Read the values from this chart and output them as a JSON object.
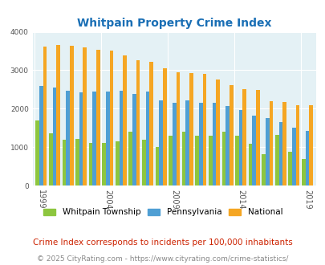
{
  "title": "Whitpain Property Crime Index",
  "title_color": "#1a6fb5",
  "years": [
    1999,
    2000,
    2001,
    2002,
    2003,
    2004,
    2005,
    2006,
    2007,
    2008,
    2009,
    2010,
    2011,
    2012,
    2013,
    2014,
    2015,
    2016,
    2017,
    2018,
    2019
  ],
  "whitpain": [
    1700,
    1360,
    1190,
    1220,
    1110,
    1110,
    1150,
    1400,
    1190,
    1000,
    1290,
    1400,
    1290,
    1290,
    1400,
    1300,
    1090,
    820,
    1310,
    870,
    690
  ],
  "pennsylvania": [
    2600,
    2560,
    2460,
    2430,
    2440,
    2440,
    2460,
    2390,
    2450,
    2210,
    2160,
    2220,
    2160,
    2160,
    2070,
    1960,
    1820,
    1760,
    1650,
    1510,
    1420
  ],
  "national": [
    3620,
    3660,
    3640,
    3600,
    3530,
    3510,
    3380,
    3270,
    3220,
    3060,
    2950,
    2930,
    2900,
    2750,
    2610,
    2500,
    2490,
    2190,
    2170,
    2100,
    2090
  ],
  "whitpain_color": "#8dc63f",
  "pennsylvania_color": "#4f9fd4",
  "national_color": "#f5a623",
  "bg_color": "#e4f1f5",
  "ylim": [
    0,
    4000
  ],
  "shown_year_ticks": [
    1999,
    2004,
    2009,
    2014,
    2019
  ],
  "footnote1": "Crime Index corresponds to incidents per 100,000 inhabitants",
  "footnote2": "© 2025 CityRating.com - https://www.cityrating.com/crime-statistics/",
  "footnote1_color": "#cc2200",
  "footnote2_color": "#888888"
}
